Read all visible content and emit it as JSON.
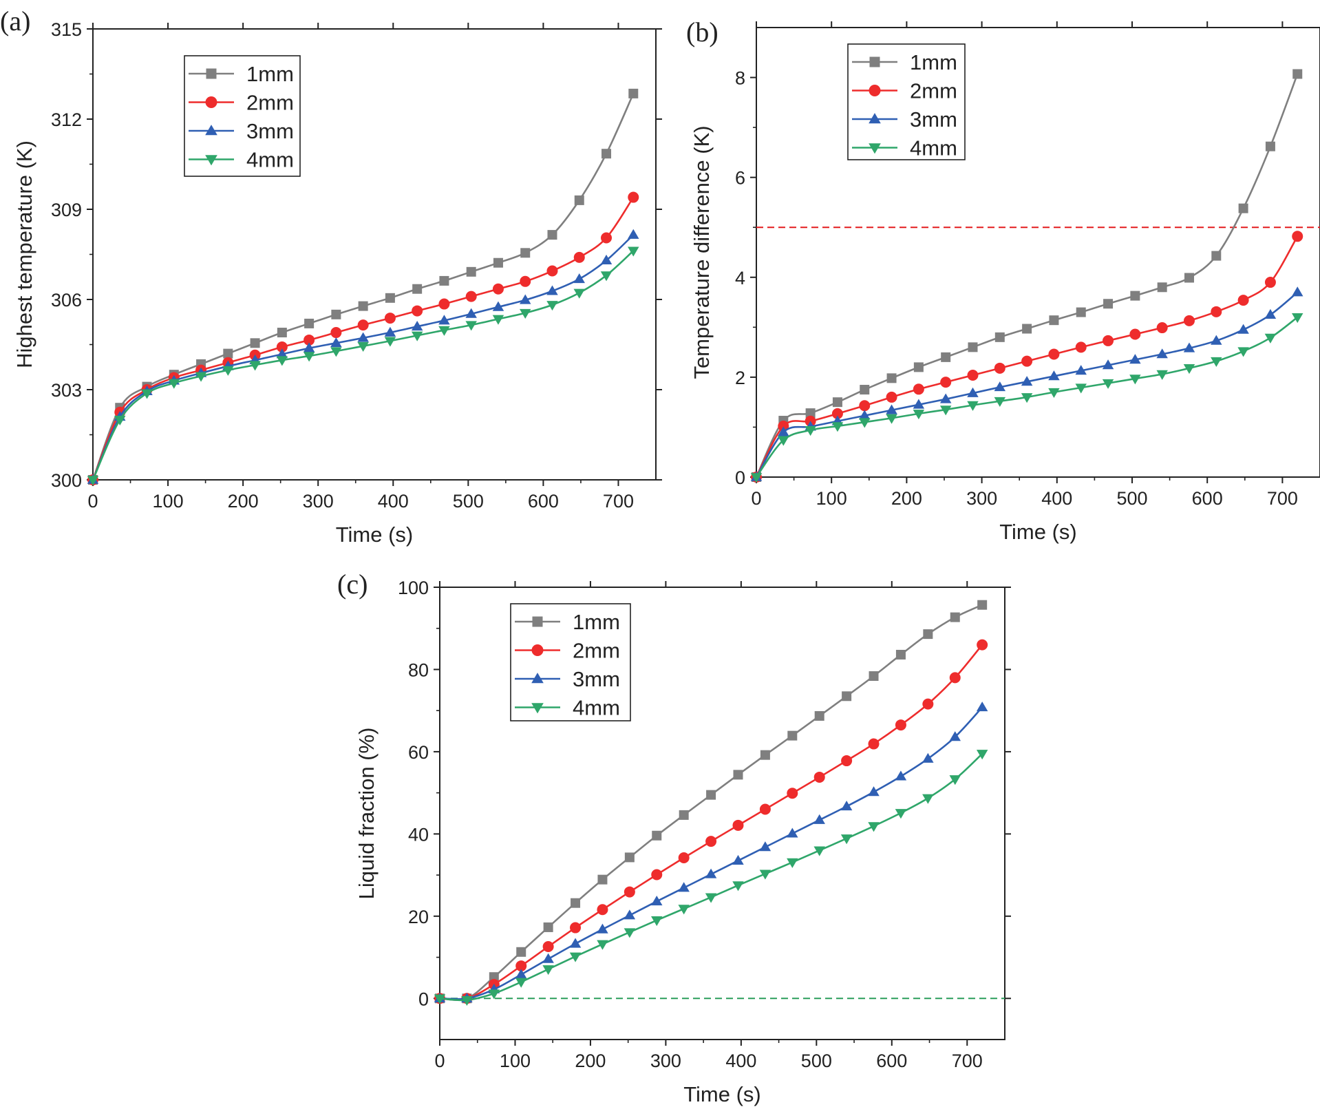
{
  "colors": {
    "1mm": "#7f7f7f",
    "2mm": "#ee2c2c",
    "3mm": "#2f5fb3",
    "4mm": "#2fa66a",
    "ref_red": "#e41a1c",
    "ref_green": "#2a9d5a"
  },
  "chart_data": [
    {
      "type": "line",
      "panel_label": "(a)",
      "xlabel": "Time (s)",
      "ylabel": "Highest temperature (K)",
      "xlim": [
        0,
        750
      ],
      "ylim": [
        300,
        315
      ],
      "xticks": [
        "0",
        "100",
        "200",
        "300",
        "400",
        "500",
        "600",
        "700"
      ],
      "yticks": [
        "300",
        "303",
        "306",
        "309",
        "312",
        "315"
      ],
      "x": [
        0,
        36,
        72,
        108,
        144,
        180,
        216,
        252,
        288,
        324,
        360,
        396,
        432,
        468,
        504,
        540,
        576,
        612,
        648,
        684,
        720
      ],
      "series": [
        {
          "name": "1mm",
          "marker": "square",
          "values": [
            300.0,
            302.4,
            303.1,
            303.5,
            303.85,
            304.2,
            304.55,
            304.9,
            305.2,
            305.5,
            305.78,
            306.05,
            306.35,
            306.62,
            306.92,
            307.22,
            307.55,
            308.15,
            309.3,
            310.85,
            312.85
          ]
        },
        {
          "name": "2mm",
          "marker": "circle",
          "values": [
            300.0,
            302.25,
            303.0,
            303.4,
            303.65,
            303.9,
            304.15,
            304.42,
            304.65,
            304.9,
            305.15,
            305.38,
            305.62,
            305.85,
            306.1,
            306.35,
            306.6,
            306.95,
            307.4,
            308.05,
            309.4
          ]
        },
        {
          "name": "3mm",
          "marker": "triangle-up",
          "values": [
            300.0,
            302.1,
            302.95,
            303.3,
            303.55,
            303.78,
            303.98,
            304.18,
            304.38,
            304.55,
            304.72,
            304.9,
            305.1,
            305.3,
            305.52,
            305.75,
            305.98,
            306.28,
            306.68,
            307.3,
            308.15
          ]
        },
        {
          "name": "4mm",
          "marker": "triangle-down",
          "values": [
            300.0,
            302.0,
            302.88,
            303.22,
            303.45,
            303.65,
            303.82,
            303.98,
            304.12,
            304.28,
            304.45,
            304.62,
            304.8,
            304.98,
            305.15,
            305.35,
            305.55,
            305.82,
            306.22,
            306.8,
            307.62
          ]
        }
      ],
      "legend": "top-left"
    },
    {
      "type": "line",
      "panel_label": "(b)",
      "xlabel": "Time (s)",
      "ylabel": "Temperature difference (K)",
      "xlim": [
        0,
        750
      ],
      "ylim": [
        0,
        9
      ],
      "xticks": [
        "0",
        "100",
        "200",
        "300",
        "400",
        "500",
        "600",
        "700"
      ],
      "yticks": [
        "0",
        "2",
        "4",
        "6",
        "8"
      ],
      "reference_line": {
        "y": 5,
        "style": "dashed",
        "color": "red"
      },
      "x": [
        0,
        36,
        72,
        108,
        144,
        180,
        216,
        252,
        288,
        324,
        360,
        396,
        432,
        468,
        504,
        540,
        576,
        612,
        648,
        684,
        720
      ],
      "series": [
        {
          "name": "1mm",
          "marker": "square",
          "values": [
            0.0,
            1.13,
            1.28,
            1.5,
            1.75,
            1.98,
            2.2,
            2.4,
            2.6,
            2.8,
            2.97,
            3.14,
            3.3,
            3.47,
            3.63,
            3.8,
            3.99,
            4.43,
            5.38,
            6.62,
            8.07
          ]
        },
        {
          "name": "2mm",
          "marker": "circle",
          "values": [
            0.0,
            1.02,
            1.12,
            1.27,
            1.43,
            1.6,
            1.76,
            1.9,
            2.04,
            2.18,
            2.32,
            2.46,
            2.6,
            2.73,
            2.86,
            2.99,
            3.13,
            3.31,
            3.54,
            3.9,
            4.82
          ]
        },
        {
          "name": "3mm",
          "marker": "triangle-up",
          "values": [
            0.0,
            0.9,
            1.01,
            1.12,
            1.23,
            1.34,
            1.45,
            1.56,
            1.68,
            1.8,
            1.91,
            2.02,
            2.13,
            2.24,
            2.35,
            2.46,
            2.58,
            2.73,
            2.95,
            3.25,
            3.7
          ]
        },
        {
          "name": "4mm",
          "marker": "triangle-down",
          "values": [
            0.0,
            0.74,
            0.94,
            1.02,
            1.1,
            1.18,
            1.27,
            1.35,
            1.44,
            1.52,
            1.6,
            1.7,
            1.79,
            1.88,
            1.97,
            2.06,
            2.18,
            2.32,
            2.52,
            2.79,
            3.2
          ]
        }
      ],
      "legend": "top-left"
    },
    {
      "type": "line",
      "panel_label": "(c)",
      "xlabel": "Time (s)",
      "ylabel": "Liquid fraction (%)",
      "xlim": [
        0,
        750
      ],
      "ylim": [
        -10,
        100
      ],
      "xticks": [
        "0",
        "100",
        "200",
        "300",
        "400",
        "500",
        "600",
        "700"
      ],
      "yticks": [
        "0",
        "20",
        "40",
        "60",
        "80",
        "100"
      ],
      "reference_line": {
        "y": 0,
        "style": "dashed",
        "color": "green"
      },
      "x": [
        0,
        36,
        72,
        108,
        144,
        180,
        216,
        252,
        288,
        324,
        360,
        396,
        432,
        468,
        504,
        540,
        576,
        612,
        648,
        684,
        720
      ],
      "series": [
        {
          "name": "1mm",
          "marker": "square",
          "values": [
            0,
            0,
            5.2,
            11.3,
            17.3,
            23.2,
            28.9,
            34.3,
            39.6,
            44.6,
            49.5,
            54.4,
            59.2,
            63.9,
            68.7,
            73.5,
            78.4,
            83.6,
            88.6,
            92.7,
            95.7
          ]
        },
        {
          "name": "2mm",
          "marker": "circle",
          "values": [
            0,
            0,
            3.4,
            7.9,
            12.6,
            17.2,
            21.6,
            25.9,
            30.1,
            34.2,
            38.2,
            42.1,
            46.0,
            49.9,
            53.8,
            57.8,
            61.9,
            66.5,
            71.6,
            78.0,
            86.0
          ]
        },
        {
          "name": "3mm",
          "marker": "triangle-up",
          "values": [
            0,
            0,
            2.2,
            5.8,
            9.6,
            13.3,
            16.8,
            20.2,
            23.6,
            26.9,
            30.2,
            33.5,
            36.8,
            40.1,
            43.4,
            46.7,
            50.2,
            54.0,
            58.3,
            63.6,
            70.8
          ]
        },
        {
          "name": "4mm",
          "marker": "triangle-down",
          "values": [
            0,
            -0.4,
            1.2,
            4.0,
            7.1,
            10.2,
            13.2,
            16.1,
            19.0,
            21.8,
            24.6,
            27.5,
            30.3,
            33.1,
            36.0,
            38.9,
            41.9,
            45.1,
            48.7,
            53.3,
            59.5
          ]
        }
      ],
      "legend": "top-left"
    }
  ]
}
